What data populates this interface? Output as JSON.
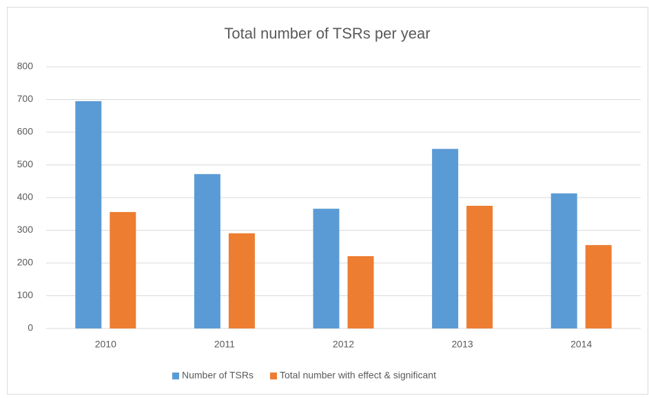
{
  "chart_data": {
    "type": "bar",
    "title": "Total number of TSRs per year",
    "categories": [
      "2010",
      "2011",
      "2012",
      "2013",
      "2014"
    ],
    "series": [
      {
        "name": "Number of TSRs",
        "color": "#5b9bd5",
        "values": [
          695,
          472,
          366,
          549,
          413
        ]
      },
      {
        "name": "Total number with effect & significant",
        "color": "#ed7d31",
        "values": [
          356,
          291,
          221,
          375,
          255
        ]
      }
    ],
    "ylim": [
      0,
      800
    ],
    "yticks": [
      0,
      100,
      200,
      300,
      400,
      500,
      600,
      700,
      800
    ],
    "grid": true,
    "legend": "bottom"
  }
}
